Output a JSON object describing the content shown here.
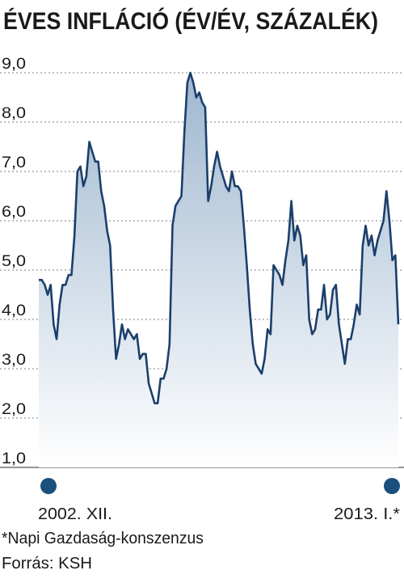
{
  "chart_data": {
    "type": "area",
    "title": "ÉVES INFLÁCIÓ (ÉV/ÉV, SZÁZALÉK)",
    "categories": [
      "2002. XII.",
      null,
      null,
      null,
      null,
      null,
      null,
      null,
      null,
      null,
      null,
      null,
      null,
      null,
      null,
      null,
      null,
      null,
      null,
      null,
      null,
      null,
      null,
      null,
      null,
      null,
      null,
      null,
      null,
      null,
      null,
      null,
      null,
      null,
      null,
      null,
      null,
      null,
      null,
      null,
      null,
      null,
      null,
      null,
      null,
      null,
      null,
      null,
      null,
      null,
      null,
      null,
      null,
      null,
      null,
      null,
      null,
      null,
      null,
      null,
      null,
      null,
      null,
      null,
      null,
      null,
      null,
      null,
      null,
      null,
      null,
      null,
      null,
      null,
      null,
      null,
      null,
      null,
      null,
      null,
      null,
      null,
      null,
      null,
      null,
      null,
      null,
      null,
      null,
      null,
      null,
      null,
      null,
      null,
      null,
      null,
      null,
      null,
      null,
      null,
      null,
      null,
      null,
      null,
      null,
      null,
      null,
      null,
      null,
      null,
      null,
      null,
      null,
      null,
      null,
      null,
      null,
      null,
      null,
      null,
      null,
      "2013. I.*"
    ],
    "values": [
      4.8,
      4.8,
      4.7,
      4.5,
      4.7,
      3.9,
      3.6,
      4.3,
      4.7,
      4.7,
      4.9,
      4.9,
      5.7,
      7.0,
      7.1,
      6.7,
      6.9,
      7.6,
      7.4,
      7.2,
      7.2,
      6.6,
      6.3,
      5.8,
      5.5,
      4.2,
      3.2,
      3.5,
      3.9,
      3.6,
      3.8,
      3.7,
      3.6,
      3.7,
      3.2,
      3.3,
      3.3,
      2.7,
      2.5,
      2.3,
      2.3,
      2.8,
      2.8,
      3.0,
      3.5,
      5.9,
      6.3,
      6.4,
      6.5,
      7.8,
      8.8,
      9.0,
      8.8,
      8.5,
      8.6,
      8.4,
      8.3,
      6.4,
      6.7,
      7.1,
      7.4,
      7.1,
      6.9,
      6.7,
      6.6,
      7.0,
      6.7,
      6.7,
      6.6,
      5.9,
      5.1,
      4.2,
      3.5,
      3.1,
      3.0,
      2.9,
      3.2,
      3.8,
      3.7,
      5.1,
      5.0,
      4.9,
      4.7,
      5.2,
      5.6,
      6.4,
      5.6,
      5.9,
      5.7,
      5.1,
      5.3,
      4.0,
      3.7,
      3.8,
      4.2,
      4.2,
      4.7,
      4.0,
      4.1,
      4.6,
      4.7,
      3.9,
      3.5,
      3.1,
      3.6,
      3.6,
      3.9,
      4.3,
      4.1,
      5.5,
      5.9,
      5.5,
      5.7,
      5.3,
      5.6,
      5.8,
      6.0,
      6.6,
      6.0,
      5.2,
      5.3,
      3.9
    ],
    "color": "#1b3f6b",
    "fill_color": "#9fb7cf",
    "ylim": [
      1,
      9
    ],
    "yticks": [
      {
        "value": 1,
        "label": "1,0"
      },
      {
        "value": 2,
        "label": "2,0"
      },
      {
        "value": 3,
        "label": "3,0"
      },
      {
        "value": 4,
        "label": "4,0"
      },
      {
        "value": 5,
        "label": "5,0"
      },
      {
        "value": 6,
        "label": "6,0"
      },
      {
        "value": 7,
        "label": "7,0"
      },
      {
        "value": 8,
        "label": "8,0"
      },
      {
        "value": 9,
        "label": "9,0"
      }
    ],
    "grid": true,
    "footnote": "*Napi Gazdaság-konszenzus",
    "source": "Forrás: KSH"
  }
}
